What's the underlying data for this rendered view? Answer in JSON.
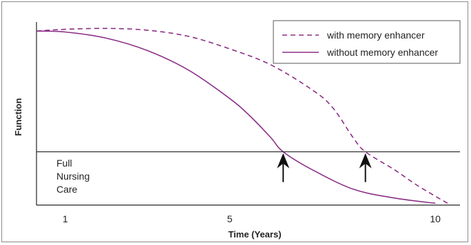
{
  "chart_data": {
    "type": "line",
    "title": "",
    "xlabel": "Time (Years)",
    "ylabel": "Function",
    "xlim": [
      0.3,
      10.6
    ],
    "ylim": [
      0,
      1
    ],
    "x_ticks": [
      1,
      5,
      10
    ],
    "x_tick_labels": [
      "1",
      "5",
      "10"
    ],
    "grid": false,
    "legend_position": "top-right",
    "threshold": {
      "y": 0.3,
      "label_lines": [
        "Full",
        "Nursing",
        "Care"
      ]
    },
    "crossings": [
      6.3,
      8.3
    ],
    "series": [
      {
        "name": "with memory enhancer",
        "style": "dashed",
        "color": "#8b2f86",
        "x": [
          0.3,
          1,
          2,
          3,
          4,
          5,
          6,
          7,
          7.5,
          8,
          8.3,
          9,
          9.5,
          10,
          10.3
        ],
        "y": [
          0.98,
          0.99,
          0.995,
          0.985,
          0.95,
          0.88,
          0.79,
          0.65,
          0.55,
          0.38,
          0.3,
          0.2,
          0.12,
          0.05,
          0.01
        ]
      },
      {
        "name": "without memory enhancer",
        "style": "solid",
        "color": "#8b2f86",
        "x": [
          0.3,
          1,
          2,
          3,
          4,
          5,
          5.5,
          6,
          6.3,
          7,
          8,
          9,
          10
        ],
        "y": [
          0.98,
          0.975,
          0.94,
          0.87,
          0.76,
          0.6,
          0.5,
          0.38,
          0.3,
          0.2,
          0.09,
          0.04,
          0.01
        ]
      }
    ]
  }
}
